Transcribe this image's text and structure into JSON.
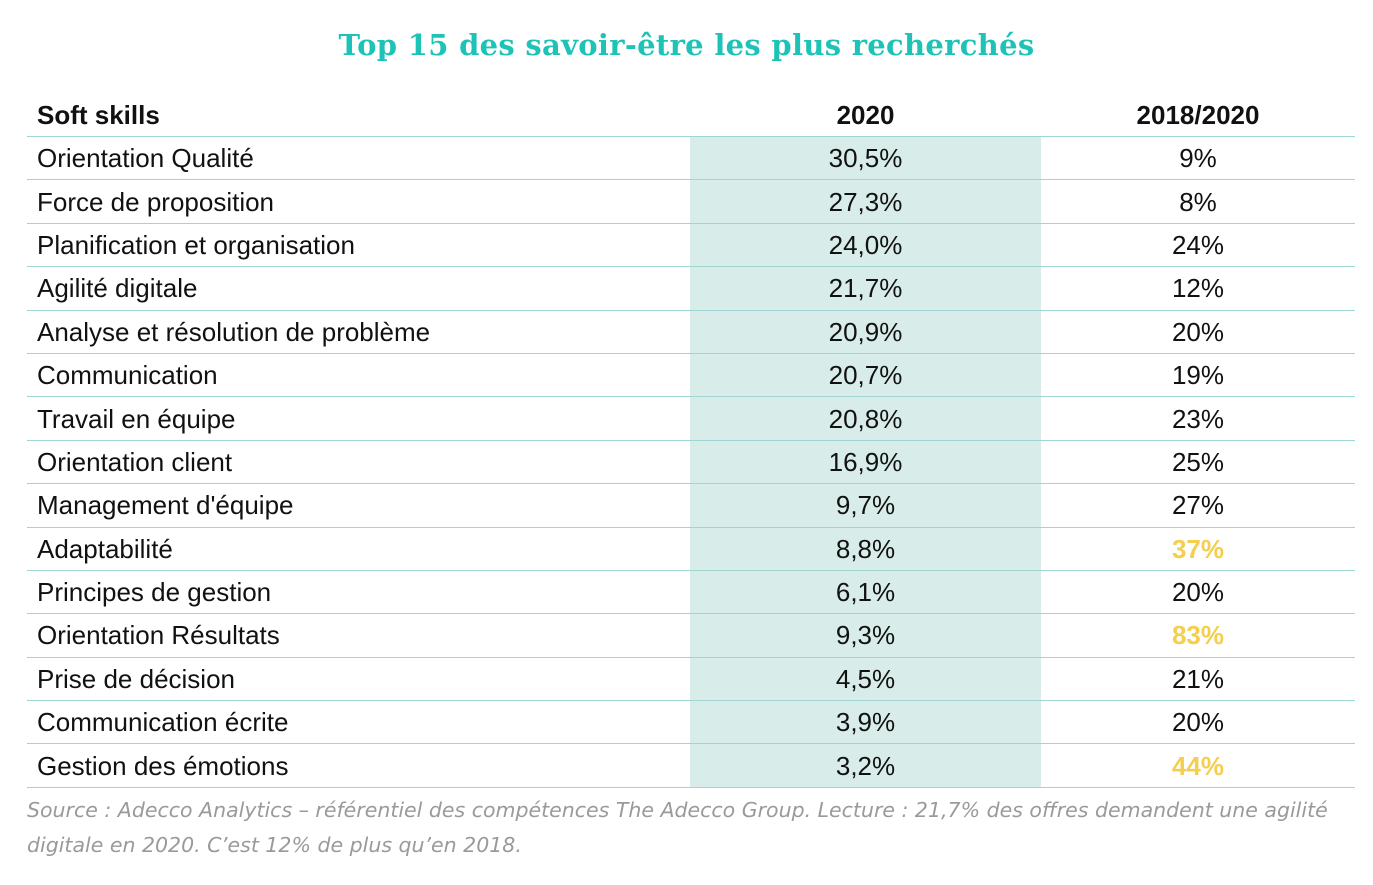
{
  "colors": {
    "title": "#1ec3b8",
    "row_border": "#9fd6d1",
    "column_shade": "#d8ede9",
    "text": "#111111",
    "highlight": "#f5ce4e",
    "source_text": "#9a9a9a"
  },
  "chart_data": {
    "type": "table",
    "title": "Top 15 des savoir-être les plus recherchés",
    "columns": [
      "Soft skills",
      "2020",
      "2018/2020"
    ],
    "rows": [
      {
        "skill": "Orientation Qualité",
        "y2020": "30,5%",
        "growth": "9%",
        "highlight": false
      },
      {
        "skill": "Force de proposition",
        "y2020": "27,3%",
        "growth": "8%",
        "highlight": false
      },
      {
        "skill": "Planification et organisation",
        "y2020": "24,0%",
        "growth": "24%",
        "highlight": false
      },
      {
        "skill": "Agilité digitale",
        "y2020": "21,7%",
        "growth": "12%",
        "highlight": false
      },
      {
        "skill": "Analyse et résolution de problème",
        "y2020": "20,9%",
        "growth": "20%",
        "highlight": false
      },
      {
        "skill": "Communication",
        "y2020": "20,7%",
        "growth": "19%",
        "highlight": false
      },
      {
        "skill": "Travail en équipe",
        "y2020": "20,8%",
        "growth": "23%",
        "highlight": false
      },
      {
        "skill": "Orientation client",
        "y2020": "16,9%",
        "growth": "25%",
        "highlight": false
      },
      {
        "skill": "Management d'équipe",
        "y2020": "9,7%",
        "growth": "27%",
        "highlight": false
      },
      {
        "skill": "Adaptabilité",
        "y2020": "8,8%",
        "growth": "37%",
        "highlight": true
      },
      {
        "skill": "Principes de gestion",
        "y2020": "6,1%",
        "growth": "20%",
        "highlight": false
      },
      {
        "skill": "Orientation Résultats",
        "y2020": "9,3%",
        "growth": "83%",
        "highlight": true
      },
      {
        "skill": "Prise de décision",
        "y2020": "4,5%",
        "growth": "21%",
        "highlight": false
      },
      {
        "skill": "Communication écrite",
        "y2020": "3,9%",
        "growth": "20%",
        "highlight": false
      },
      {
        "skill": "Gestion des émotions",
        "y2020": "3,2%",
        "growth": "44%",
        "highlight": true
      }
    ],
    "source": "Source : Adecco Analytics – référentiel des compétences The Adecco Group. Lecture : 21,7% des offres demandent une agilité digitale en 2020. C’est 12% de plus qu’en 2018."
  }
}
